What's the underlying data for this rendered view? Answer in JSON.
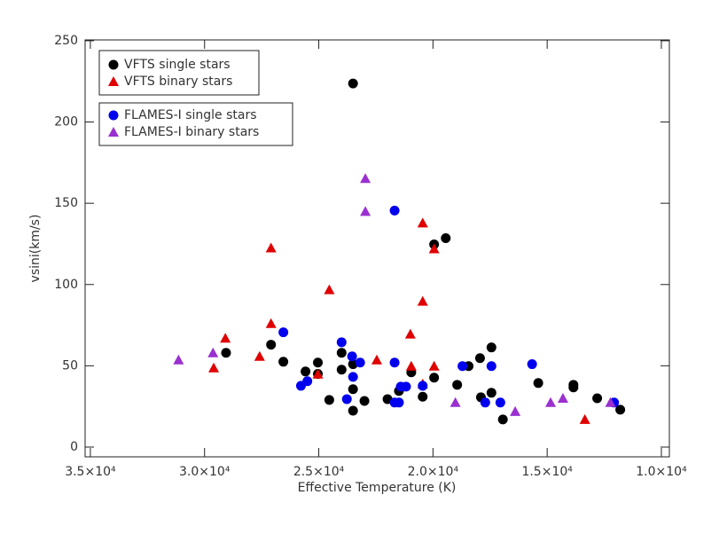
{
  "chart_data": {
    "type": "scatter",
    "x_label": "Effective Temperature (K)",
    "y_label": "vsini(km/s)",
    "xlim": [
      35230,
      9650
    ],
    "ylim": [
      -6,
      250.5
    ],
    "xticks": [
      {
        "value": 35000,
        "label": "3.5×10⁴"
      },
      {
        "value": 30000,
        "label": "3.0×10⁴"
      },
      {
        "value": 25000,
        "label": "2.5×10⁴"
      },
      {
        "value": 20000,
        "label": "2.0×10⁴"
      },
      {
        "value": 15000,
        "label": "1.5×10⁴"
      },
      {
        "value": 10000,
        "label": "1.0×10⁴"
      }
    ],
    "yticks": [
      0,
      50,
      100,
      150,
      200,
      250
    ],
    "series": [
      {
        "name": "VFTS single stars",
        "color": "#000000",
        "marker": "circle",
        "x": [
          29060,
          27090,
          26550,
          25580,
          25040,
          25040,
          24540,
          24000,
          24000,
          23500,
          23500,
          23500,
          23500,
          23000,
          21990,
          21490,
          20950,
          20450,
          19950,
          19950,
          19440,
          18940,
          18440,
          17940,
          17900,
          17440,
          17440,
          16940,
          15390,
          13850,
          13850,
          12810,
          11800
        ],
        "values": [
          58,
          63,
          52.5,
          46.5,
          52,
          45,
          29,
          58,
          47.6,
          223.7,
          51,
          35.6,
          22.4,
          28.4,
          29.5,
          34.5,
          46,
          31,
          42.7,
          124.7,
          128.5,
          38.3,
          49.8,
          54.7,
          30.6,
          61.3,
          33.4,
          17,
          39.4,
          38.3,
          36.7,
          30,
          23
        ]
      },
      {
        "name": "VFTS binary stars",
        "color": "#e00000",
        "marker": "triangle",
        "x": [
          29600,
          29090,
          27590,
          27090,
          27090,
          24540,
          25040,
          22460,
          20990,
          20950,
          20450,
          20450,
          20450,
          19950,
          19950,
          13350
        ],
        "values": [
          48.7,
          67,
          55.8,
          122.5,
          76,
          96.8,
          44.9,
          53.6,
          69.5,
          49.8,
          137.9,
          89.7,
          38.8,
          122,
          49.8,
          17
        ]
      },
      {
        "name": "FLAMES-I single stars",
        "color": "#0000ee",
        "marker": "circle",
        "x": [
          26550,
          25780,
          25500,
          24000,
          23770,
          23540,
          23500,
          23190,
          21680,
          21680,
          21680,
          21490,
          21410,
          21180,
          20450,
          18710,
          17710,
          17440,
          17050,
          15660,
          12070
        ],
        "values": [
          70.6,
          37.7,
          40.5,
          64.5,
          29.5,
          55.8,
          43.2,
          52,
          145.5,
          52,
          27.4,
          27.4,
          37.2,
          37.2,
          37.7,
          49.8,
          27.4,
          49.8,
          27.4,
          51,
          27.4
        ]
      },
      {
        "name": "FLAMES-I binary stars",
        "color": "#9a30d0",
        "marker": "triangle",
        "x": [
          31140,
          29630,
          22960,
          22960,
          19020,
          16400,
          14850,
          14310,
          12230
        ],
        "values": [
          53.6,
          58,
          165.2,
          145,
          27.4,
          21.9,
          27.4,
          30,
          27.4
        ]
      }
    ]
  }
}
